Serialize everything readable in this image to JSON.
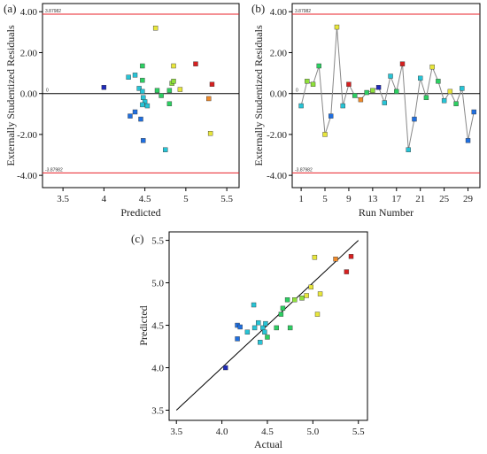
{
  "colors": {
    "limit_line": "#e8202a",
    "zero_line": "#000000",
    "connector": "#888888",
    "fit_line": "#000000",
    "point_palette": [
      "#1f2bb8",
      "#1f6fe0",
      "#27c4d6",
      "#2ccf62",
      "#8ee03a",
      "#e8e63a",
      "#ef8a2a",
      "#d62020"
    ]
  },
  "chart_data": [
    {
      "panel": "(a)",
      "type": "scatter",
      "xlabel": "Predicted",
      "ylabel": "Externally Studentized Residuals",
      "xlim": [
        3.25,
        5.65
      ],
      "ylim": [
        -4.6,
        4.4
      ],
      "xticks": [
        "3.5",
        "4",
        "4.5",
        "5",
        "5.5"
      ],
      "yticks": [
        "-4.00",
        "-2.00",
        "0.00",
        "2.00",
        "4.00"
      ],
      "limits": [
        3.87982,
        -3.87982
      ],
      "limit_labels": [
        "3.87982",
        "-3.87982"
      ],
      "zero_label": "0",
      "points": [
        {
          "x": 4.0,
          "y": 0.3,
          "c": 0
        },
        {
          "x": 4.32,
          "y": -1.1,
          "c": 1
        },
        {
          "x": 4.38,
          "y": -0.9,
          "c": 1
        },
        {
          "x": 4.48,
          "y": -2.3,
          "c": 1
        },
        {
          "x": 4.45,
          "y": -1.25,
          "c": 1
        },
        {
          "x": 4.3,
          "y": 0.8,
          "c": 2
        },
        {
          "x": 4.38,
          "y": 0.9,
          "c": 2
        },
        {
          "x": 4.43,
          "y": 0.25,
          "c": 2
        },
        {
          "x": 4.47,
          "y": 0.1,
          "c": 2
        },
        {
          "x": 4.48,
          "y": -0.2,
          "c": 2
        },
        {
          "x": 4.5,
          "y": -0.4,
          "c": 2
        },
        {
          "x": 4.47,
          "y": -0.55,
          "c": 2
        },
        {
          "x": 4.53,
          "y": -0.6,
          "c": 2
        },
        {
          "x": 4.75,
          "y": -2.75,
          "c": 2
        },
        {
          "x": 4.47,
          "y": 1.35,
          "c": 3
        },
        {
          "x": 4.47,
          "y": 0.65,
          "c": 3
        },
        {
          "x": 4.65,
          "y": 0.15,
          "c": 3
        },
        {
          "x": 4.7,
          "y": -0.1,
          "c": 3
        },
        {
          "x": 4.8,
          "y": -0.5,
          "c": 3
        },
        {
          "x": 4.8,
          "y": 0.15,
          "c": 3
        },
        {
          "x": 4.83,
          "y": 0.5,
          "c": 4
        },
        {
          "x": 4.85,
          "y": 0.6,
          "c": 4
        },
        {
          "x": 4.63,
          "y": 3.2,
          "c": 5
        },
        {
          "x": 4.85,
          "y": 1.35,
          "c": 5
        },
        {
          "x": 4.93,
          "y": 0.2,
          "c": 5
        },
        {
          "x": 5.3,
          "y": -1.95,
          "c": 5
        },
        {
          "x": 5.28,
          "y": -0.25,
          "c": 6
        },
        {
          "x": 5.12,
          "y": 1.45,
          "c": 7
        },
        {
          "x": 5.32,
          "y": 0.45,
          "c": 7
        }
      ]
    },
    {
      "panel": "(b)",
      "type": "line",
      "xlabel": "Run Number",
      "ylabel": "Externally Studentized Residuals",
      "xlim": [
        -0.5,
        31.0
      ],
      "ylim": [
        -4.6,
        4.4
      ],
      "xticks": [
        "1",
        "5",
        "9",
        "13",
        "17",
        "21",
        "25",
        "29"
      ],
      "yticks": [
        "-4.00",
        "-2.00",
        "0.00",
        "2.00",
        "4.00"
      ],
      "limits": [
        3.87982,
        -3.87982
      ],
      "limit_labels": [
        "3.87982",
        "-3.87982"
      ],
      "zero_label": "0",
      "points": [
        {
          "x": 1,
          "y": -0.6,
          "c": 2
        },
        {
          "x": 2,
          "y": 0.6,
          "c": 4
        },
        {
          "x": 3,
          "y": 0.45,
          "c": 4
        },
        {
          "x": 4,
          "y": 1.35,
          "c": 3
        },
        {
          "x": 5,
          "y": -2.0,
          "c": 5
        },
        {
          "x": 6,
          "y": -1.1,
          "c": 1
        },
        {
          "x": 7,
          "y": 3.25,
          "c": 5
        },
        {
          "x": 8,
          "y": -0.6,
          "c": 2
        },
        {
          "x": 9,
          "y": 0.45,
          "c": 7
        },
        {
          "x": 10,
          "y": -0.1,
          "c": 3
        },
        {
          "x": 11,
          "y": -0.3,
          "c": 6
        },
        {
          "x": 12,
          "y": 0.05,
          "c": 3
        },
        {
          "x": 13,
          "y": 0.15,
          "c": 4
        },
        {
          "x": 14,
          "y": 0.3,
          "c": 0
        },
        {
          "x": 15,
          "y": -0.45,
          "c": 2
        },
        {
          "x": 16,
          "y": 0.85,
          "c": 2
        },
        {
          "x": 17,
          "y": 0.1,
          "c": 3
        },
        {
          "x": 18,
          "y": 1.45,
          "c": 7
        },
        {
          "x": 19,
          "y": -2.75,
          "c": 2
        },
        {
          "x": 20,
          "y": -1.25,
          "c": 1
        },
        {
          "x": 21,
          "y": 0.75,
          "c": 2
        },
        {
          "x": 22,
          "y": -0.2,
          "c": 3
        },
        {
          "x": 23,
          "y": 1.3,
          "c": 5
        },
        {
          "x": 24,
          "y": 0.6,
          "c": 3
        },
        {
          "x": 25,
          "y": -0.35,
          "c": 2
        },
        {
          "x": 26,
          "y": 0.1,
          "c": 5
        },
        {
          "x": 27,
          "y": -0.5,
          "c": 3
        },
        {
          "x": 28,
          "y": 0.25,
          "c": 2
        },
        {
          "x": 29,
          "y": -2.3,
          "c": 1
        },
        {
          "x": 30,
          "y": -0.9,
          "c": 1
        }
      ]
    },
    {
      "panel": "(c)",
      "type": "scatter",
      "xlabel": "Actual",
      "ylabel": "Predicted",
      "xlim": [
        3.42,
        5.6
      ],
      "ylim": [
        3.38,
        5.6
      ],
      "xticks": [
        "3.5",
        "4.0",
        "4.5",
        "5.0",
        "5.5"
      ],
      "yticks": [
        "3.5",
        "4.0",
        "4.5",
        "5.0",
        "5.5"
      ],
      "fit_line": [
        [
          3.5,
          3.5
        ],
        [
          5.5,
          5.5
        ]
      ],
      "points": [
        {
          "x": 4.04,
          "y": 4.0,
          "c": 0
        },
        {
          "x": 4.17,
          "y": 4.34,
          "c": 1
        },
        {
          "x": 4.17,
          "y": 4.5,
          "c": 1
        },
        {
          "x": 4.2,
          "y": 4.48,
          "c": 1
        },
        {
          "x": 4.28,
          "y": 4.42,
          "c": 2
        },
        {
          "x": 4.35,
          "y": 4.74,
          "c": 2
        },
        {
          "x": 4.36,
          "y": 4.47,
          "c": 2
        },
        {
          "x": 4.4,
          "y": 4.53,
          "c": 2
        },
        {
          "x": 4.42,
          "y": 4.3,
          "c": 2
        },
        {
          "x": 4.45,
          "y": 4.47,
          "c": 2
        },
        {
          "x": 4.47,
          "y": 4.42,
          "c": 2
        },
        {
          "x": 4.48,
          "y": 4.52,
          "c": 2
        },
        {
          "x": 4.5,
          "y": 4.36,
          "c": 3
        },
        {
          "x": 4.6,
          "y": 4.47,
          "c": 3
        },
        {
          "x": 4.65,
          "y": 4.63,
          "c": 3
        },
        {
          "x": 4.67,
          "y": 4.7,
          "c": 3
        },
        {
          "x": 4.72,
          "y": 4.8,
          "c": 3
        },
        {
          "x": 4.75,
          "y": 4.47,
          "c": 3
        },
        {
          "x": 4.8,
          "y": 4.8,
          "c": 4
        },
        {
          "x": 4.88,
          "y": 4.82,
          "c": 4
        },
        {
          "x": 4.93,
          "y": 4.85,
          "c": 5
        },
        {
          "x": 4.98,
          "y": 4.95,
          "c": 5
        },
        {
          "x": 5.02,
          "y": 5.3,
          "c": 5
        },
        {
          "x": 5.05,
          "y": 4.63,
          "c": 5
        },
        {
          "x": 5.08,
          "y": 4.87,
          "c": 5
        },
        {
          "x": 5.25,
          "y": 5.28,
          "c": 6
        },
        {
          "x": 5.37,
          "y": 5.13,
          "c": 7
        },
        {
          "x": 5.42,
          "y": 5.31,
          "c": 7
        }
      ]
    }
  ]
}
